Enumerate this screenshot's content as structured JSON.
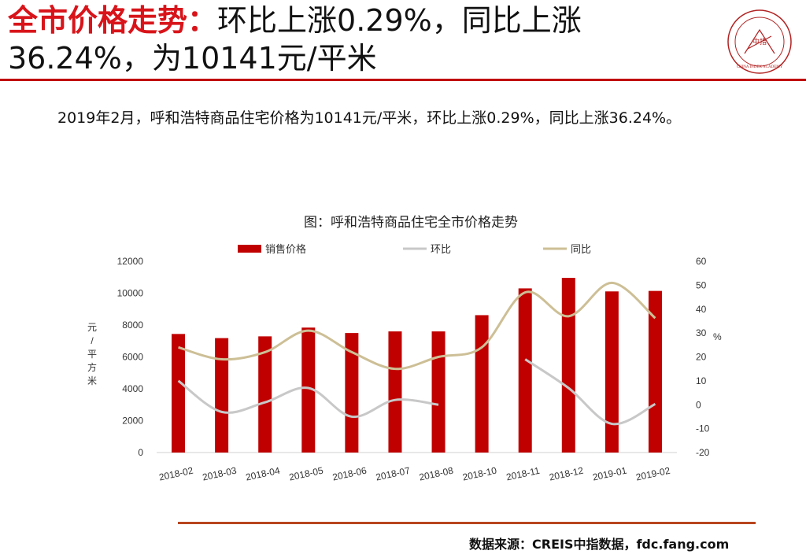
{
  "slide": {
    "title_highlight": "全市价格走势：",
    "title_rest": "环比上涨0.29%，同比上涨36.24%，为10141元/平米",
    "summary": "2019年2月，呼和浩特商品住宅价格为10141元/平米，环比上涨0.29%，同比上涨36.24%。",
    "source": "数据来源：CREIS中指数据，fdc.fang.com",
    "logo_text": "CHINA INDEX ACADEMY",
    "logo_center": "中指"
  },
  "colors": {
    "bar": "#c00000",
    "mom": "#c8c8c8",
    "yoy": "#cdbf96",
    "accent": "#d8141a"
  },
  "chart_data": {
    "type": "bar",
    "title": "图：呼和浩特商品住宅全市价格走势",
    "categories": [
      "2018-02",
      "2018-03",
      "2018-04",
      "2018-05",
      "2018-06",
      "2018-07",
      "2018-08",
      "2018-10",
      "2018-11",
      "2018-12",
      "2019-01",
      "2019-02"
    ],
    "ylabel": "元/平方米",
    "y2label": "%",
    "ylim": [
      0,
      12000
    ],
    "y2lim": [
      -20,
      60
    ],
    "yticks": [
      "0",
      "2000",
      "4000",
      "6000",
      "8000",
      "10000",
      "12000"
    ],
    "y2ticks": [
      "-20",
      "-10",
      "0",
      "10",
      "20",
      "30",
      "40",
      "50",
      "60"
    ],
    "legend_position": "top",
    "series": [
      {
        "name": "销售价格",
        "type": "bar",
        "axis": "left",
        "values": [
          7440,
          7180,
          7290,
          7840,
          7500,
          7600,
          7600,
          8620,
          10300,
          10960,
          10110,
          10141
        ]
      },
      {
        "name": "环比",
        "type": "line",
        "axis": "right",
        "values": [
          10,
          -3,
          1,
          7,
          -5,
          2,
          0,
          null,
          19,
          7,
          -8,
          0.29
        ]
      },
      {
        "name": "同比",
        "type": "line",
        "axis": "right",
        "values": [
          24,
          19,
          22,
          31,
          22,
          15,
          20,
          24,
          47,
          37,
          51,
          36.24
        ]
      }
    ]
  }
}
